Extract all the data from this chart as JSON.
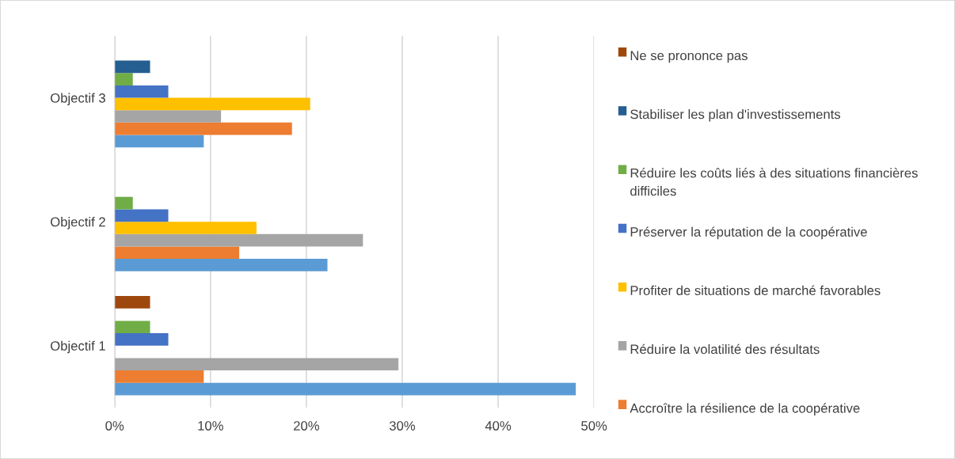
{
  "chart_data": {
    "type": "bar",
    "orientation": "horizontal",
    "categories": [
      "Objectif 3",
      "Objectif 2",
      "Objectif 1"
    ],
    "series": [
      {
        "color": "#5b9bd5",
        "values": [
          9.3,
          22.2,
          48.1
        ]
      },
      {
        "name": "Accroître la résilience de la coopérative",
        "color": "#ed7d31",
        "values": [
          18.5,
          13.0,
          9.3
        ]
      },
      {
        "name": "Réduire la volatilité des résultats",
        "color": "#a5a5a5",
        "values": [
          11.1,
          25.9,
          29.6
        ]
      },
      {
        "name": "Profiter de situations de marché favorables",
        "color": "#ffc000",
        "values": [
          20.4,
          14.8,
          null
        ]
      },
      {
        "name": "Préserver la réputation de la coopérative",
        "color": "#4472c4",
        "values": [
          5.6,
          5.6,
          5.6
        ]
      },
      {
        "name": "Réduire les coûts liés à des situations financières difficiles",
        "color": "#70ad47",
        "values": [
          1.9,
          1.9,
          3.7
        ]
      },
      {
        "name": "Stabiliser les plan d'investissements",
        "color": "#255e91",
        "values": [
          3.7,
          null,
          null
        ]
      },
      {
        "name": "Ne se prononce pas",
        "color": "#9e480e",
        "values": [
          null,
          null,
          3.7
        ]
      }
    ],
    "xlim": [
      0,
      50
    ],
    "xticks": [
      {
        "value": 0,
        "label": "0%"
      },
      {
        "value": 10,
        "label": "10%"
      },
      {
        "value": 20,
        "label": "20%"
      },
      {
        "value": 30,
        "label": "30%"
      },
      {
        "value": 40,
        "label": "40%"
      },
      {
        "value": 50,
        "label": "50%"
      }
    ],
    "grid": "x",
    "legend": "right"
  }
}
